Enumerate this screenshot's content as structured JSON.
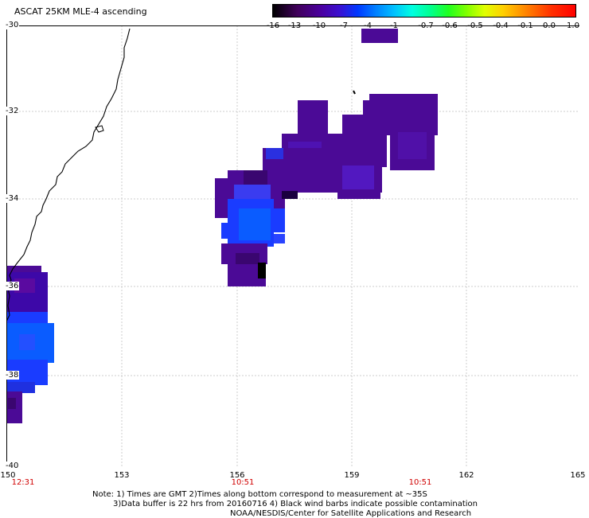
{
  "title": "ASCAT 25KM MLE-4 ascending",
  "colorbar": {
    "ticks": [
      "-16",
      "-13",
      "-10",
      "-7",
      "-4",
      "-1",
      "-0.7",
      "-0.6",
      "-0.5",
      "-0.4",
      "-0.1",
      "0.0",
      "1.0"
    ]
  },
  "axes": {
    "lat_labels": [
      "-30",
      "-32",
      "-34",
      "-36",
      "-38",
      "-40"
    ],
    "lon_labels": [
      "150",
      "153",
      "156",
      "159",
      "162",
      "165"
    ]
  },
  "pass_times": [
    "12:31",
    "10:51",
    "10:51"
  ],
  "notes": [
    "Note: 1) Times are GMT 2)Times along bottom correspond to measurement at ~35S",
    "3)Data buffer is 22 hrs from 20160716 4) Black wind barbs indicate possible contamination",
    "NOAA/NESDIS/Center for Satellite Applications and Research"
  ],
  "colors": {
    "purple": "#4b0a96",
    "dark_purple": "#3a0670",
    "blue": "#1a3cff",
    "bright_blue": "#0a5cff",
    "grid": "#cccccc",
    "time_red": "#d00000"
  }
}
